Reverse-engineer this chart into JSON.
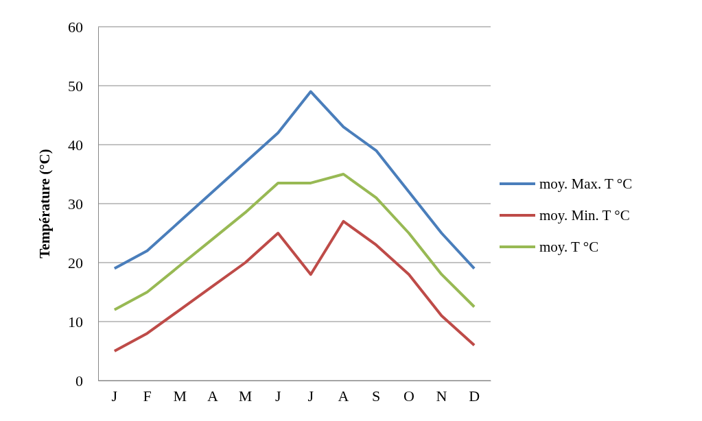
{
  "chart_data": {
    "type": "line",
    "ylabel": "Température (°C)",
    "categories": [
      "J",
      "F",
      "M",
      "A",
      "M",
      "J",
      "J",
      "A",
      "S",
      "O",
      "N",
      "D"
    ],
    "series": [
      {
        "name": "moy. Max. T °C",
        "color": "#4a7ebb",
        "values": [
          19,
          22,
          27,
          32,
          37,
          42,
          49,
          43,
          39,
          32,
          25,
          19
        ]
      },
      {
        "name": "moy. Min. T °C",
        "color": "#be4b48",
        "values": [
          5,
          8,
          12,
          16,
          20,
          25,
          18,
          27,
          23,
          18,
          11,
          6
        ]
      },
      {
        "name": "moy. T °C",
        "color": "#98b954",
        "values": [
          12,
          15,
          19.5,
          24,
          28.5,
          33.5,
          33.5,
          35,
          31,
          25,
          18,
          12.5
        ]
      }
    ],
    "ylim": [
      0,
      60
    ],
    "yticks": [
      0,
      10,
      20,
      30,
      40,
      50,
      60
    ],
    "grid": "y",
    "legend": "right",
    "marker": "none",
    "line_style": "solid"
  }
}
